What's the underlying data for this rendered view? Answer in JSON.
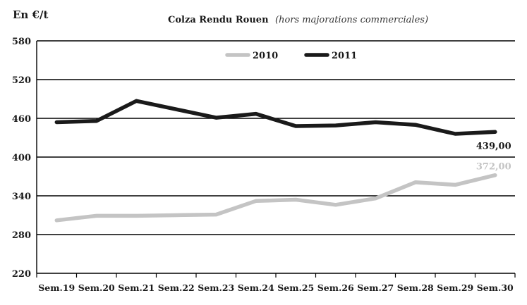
{
  "chart_data": {
    "type": "line",
    "title": "Colza Rendu Rouen",
    "subtitle": "(hors majorations commerciales)",
    "ylabel": "En €/t",
    "xlabel": "",
    "ylim": [
      220,
      580
    ],
    "yticks": [
      220,
      280,
      340,
      400,
      460,
      520,
      580
    ],
    "grid": true,
    "legend_position": "top-center",
    "categories": [
      "Sem.19",
      "Sem.20",
      "Sem.21",
      "Sem.22",
      "Sem.23",
      "Sem.24",
      "Sem.25",
      "Sem.26",
      "Sem.27",
      "Sem.28",
      "Sem.29",
      "Sem.30"
    ],
    "series": [
      {
        "name": "2010",
        "color": "#c4c4c4",
        "values": [
          302,
          309,
          309,
          310,
          311,
          332,
          334,
          326,
          336,
          361,
          357,
          372
        ],
        "end_label": "372,00"
      },
      {
        "name": "2011",
        "color": "#1a1a1a",
        "values": [
          454,
          456,
          487,
          474,
          461,
          467,
          448,
          449,
          454,
          450,
          436,
          439
        ],
        "end_label": "439,00"
      }
    ]
  }
}
